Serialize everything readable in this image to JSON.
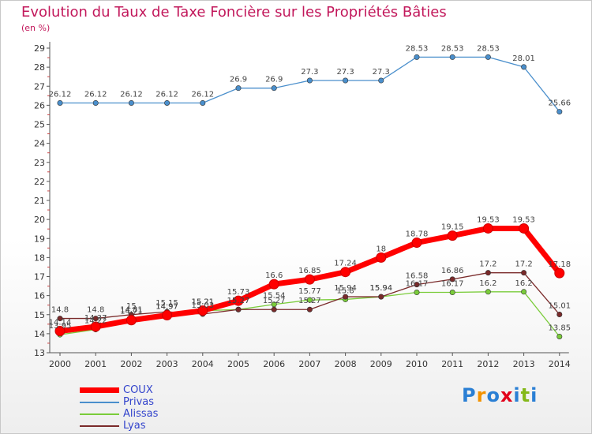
{
  "title": "Evolution du Taux de Taxe Foncière sur les Propriétés Bâties",
  "subtitle": "(en %)",
  "logo": {
    "text": "Proxiti",
    "letters": [
      {
        "ch": "P",
        "color": "#2a7fd4"
      },
      {
        "ch": "r",
        "color": "#f39200"
      },
      {
        "ch": "o",
        "color": "#2a7fd4"
      },
      {
        "ch": "x",
        "color": "#e2001a"
      },
      {
        "ch": "i",
        "color": "#2a7fd4"
      },
      {
        "ch": "t",
        "color": "#84b819"
      },
      {
        "ch": "i",
        "color": "#2a7fd4"
      }
    ]
  },
  "chart_data": {
    "type": "line",
    "title": "Evolution du Taux de Taxe Foncière sur les Propriétés Bâties",
    "ylabel": "(en %)",
    "xlabel": "",
    "x": [
      2000,
      2001,
      2002,
      2003,
      2004,
      2005,
      2006,
      2007,
      2008,
      2009,
      2010,
      2011,
      2012,
      2013,
      2014
    ],
    "ylim": [
      13,
      29
    ],
    "yticks": [
      13,
      14,
      15,
      16,
      17,
      18,
      19,
      20,
      21,
      22,
      23,
      24,
      25,
      26,
      27,
      28,
      29
    ],
    "grid": false,
    "legend_position": "bottom-left",
    "series": [
      {
        "name": "COUX",
        "color": "#ff0000",
        "values": [
          14.14,
          14.37,
          14.71,
          14.97,
          15.21,
          15.73,
          16.6,
          16.85,
          17.24,
          18,
          18.78,
          19.15,
          19.53,
          19.53,
          17.18
        ],
        "labels": [
          "14.14",
          "14.37",
          "14.71",
          "14.97",
          "15.21",
          "15.73",
          "16.6",
          "16.85",
          "17.24",
          "18",
          "18.78",
          "19.15",
          "19.53",
          "19.53",
          "17.18"
        ]
      },
      {
        "name": "Privas",
        "color": "#4a8fcc",
        "values": [
          26.12,
          26.12,
          26.12,
          26.12,
          26.12,
          26.9,
          26.9,
          27.3,
          27.3,
          27.3,
          28.53,
          28.53,
          28.53,
          28.01,
          25.66
        ],
        "labels": [
          "26.12",
          "26.12",
          "26.12",
          "26.12",
          "26.12",
          "26.9",
          "26.9",
          "27.3",
          "27.3",
          "27.3",
          "28.53",
          "28.53",
          "28.53",
          "28.01",
          "25.66"
        ]
      },
      {
        "name": "Alissas",
        "color": "#7acc3a",
        "values": [
          13.95,
          14.22,
          14.81,
          14.97,
          15.21,
          15.27,
          15.54,
          15.77,
          15.8,
          15.94,
          16.17,
          16.17,
          16.2,
          16.2,
          13.85
        ],
        "labels": [
          "13.95",
          "14.22",
          "14.81",
          "14.97",
          "15.21",
          "15.27",
          "15.54",
          "15.77",
          "15.8",
          "15.94",
          "16.17",
          "16.17",
          "16.2",
          "16.2",
          "13.85"
        ]
      },
      {
        "name": "Lyas",
        "color": "#7a2a2a",
        "values": [
          14.8,
          14.8,
          15,
          15.15,
          15.03,
          15.27,
          15.27,
          15.27,
          15.94,
          15.94,
          16.58,
          16.86,
          17.2,
          17.2,
          15.01
        ],
        "labels": [
          "14.8",
          "14.8",
          "15",
          "15.15",
          "15.03",
          "15.27",
          "15.27",
          "15.27",
          "15.94",
          "15.94",
          "16.58",
          "16.86",
          "17.2",
          "17.2",
          "15.01"
        ]
      }
    ]
  }
}
